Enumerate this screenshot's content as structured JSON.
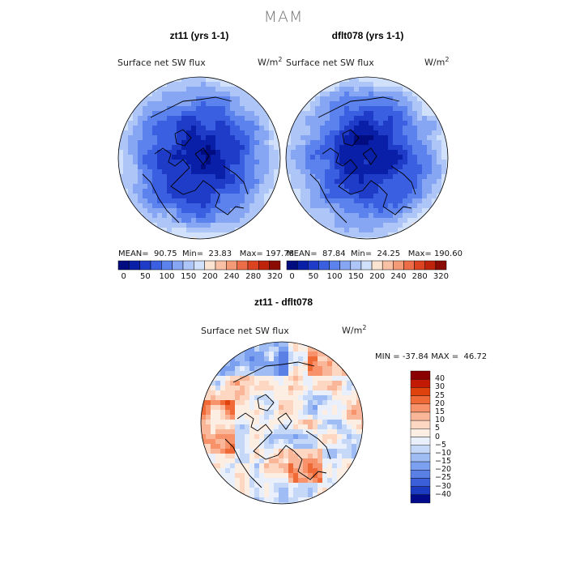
{
  "figure": {
    "title": "MAM"
  },
  "panels": [
    {
      "title": "zt11 (yrs 1-1)",
      "variable": "Surface net SW flux",
      "units_base": "W/m",
      "units_exp": "2",
      "mean": "90.75",
      "min": "23.83",
      "max": "197.78"
    },
    {
      "title": "dflt078 (yrs 1-1)",
      "variable": "Surface net SW flux",
      "units_base": "W/m",
      "units_exp": "2",
      "mean": "87.84",
      "min": "24.25",
      "max": "190.60"
    },
    {
      "title": "zt11 - dflt078",
      "variable": "Surface net SW flux",
      "units_base": "W/m",
      "units_exp": "2",
      "min": "-37.84",
      "max": "46.72"
    }
  ],
  "labels": {
    "mean": "MEAN=",
    "min": "Min=",
    "max": "Max=",
    "min_diff": "MIN =",
    "max_diff": "MAX ="
  },
  "chart_data": [
    {
      "type": "heatmap",
      "projection": "north polar stereographic",
      "title": "zt11 (yrs 1-1)",
      "variable": "Surface net SW flux",
      "units": "W/m^2",
      "stats": {
        "mean": 90.75,
        "min": 23.83,
        "max": 197.78
      },
      "colorbar": {
        "orientation": "horizontal",
        "levels": [
          0,
          25,
          50,
          75,
          100,
          125,
          150,
          175,
          200,
          220,
          240,
          260,
          280,
          300,
          320
        ],
        "tick_labels": [
          "0",
          "50",
          "100",
          "150",
          "200",
          "240",
          "280",
          "320"
        ],
        "colors": [
          "#000c80",
          "#0a1fa8",
          "#1e3cc8",
          "#3a5fe0",
          "#5c82ee",
          "#86a6f4",
          "#aec5f8",
          "#d2e1fb",
          "#fbe3d2",
          "#f8c0a4",
          "#f39a76",
          "#ec6d47",
          "#dc4321",
          "#be230c",
          "#8b0c04"
        ]
      }
    },
    {
      "type": "heatmap",
      "projection": "north polar stereographic",
      "title": "dflt078 (yrs 1-1)",
      "variable": "Surface net SW flux",
      "units": "W/m^2",
      "stats": {
        "mean": 87.84,
        "min": 24.25,
        "max": 190.6
      },
      "colorbar": {
        "orientation": "horizontal",
        "levels": [
          0,
          25,
          50,
          75,
          100,
          125,
          150,
          175,
          200,
          220,
          240,
          260,
          280,
          300,
          320
        ],
        "tick_labels": [
          "0",
          "50",
          "100",
          "150",
          "200",
          "240",
          "280",
          "320"
        ],
        "colors": [
          "#000c80",
          "#0a1fa8",
          "#1e3cc8",
          "#3a5fe0",
          "#5c82ee",
          "#86a6f4",
          "#aec5f8",
          "#d2e1fb",
          "#fbe3d2",
          "#f8c0a4",
          "#f39a76",
          "#ec6d47",
          "#dc4321",
          "#be230c",
          "#8b0c04"
        ]
      }
    },
    {
      "type": "heatmap",
      "projection": "north polar stereographic",
      "title": "zt11 - dflt078",
      "variable": "Surface net SW flux",
      "units": "W/m^2",
      "stats": {
        "min": -37.84,
        "max": 46.72
      },
      "colorbar": {
        "orientation": "vertical",
        "tick_labels": [
          "40",
          "30",
          "25",
          "20",
          "15",
          "10",
          "5",
          "0",
          "−5",
          "−10",
          "−15",
          "−20",
          "−25",
          "−30",
          "−40"
        ],
        "colors": [
          "#8b0000",
          "#c31a05",
          "#e0420d",
          "#ef6a36",
          "#f7926a",
          "#fab699",
          "#fdd7c2",
          "#fdeee4",
          "#e9f0fb",
          "#c5d8f8",
          "#9fbdf4",
          "#7ba0ef",
          "#5a80e6",
          "#3b5ed9",
          "#1d3bc0",
          "#000a8a"
        ]
      }
    }
  ]
}
